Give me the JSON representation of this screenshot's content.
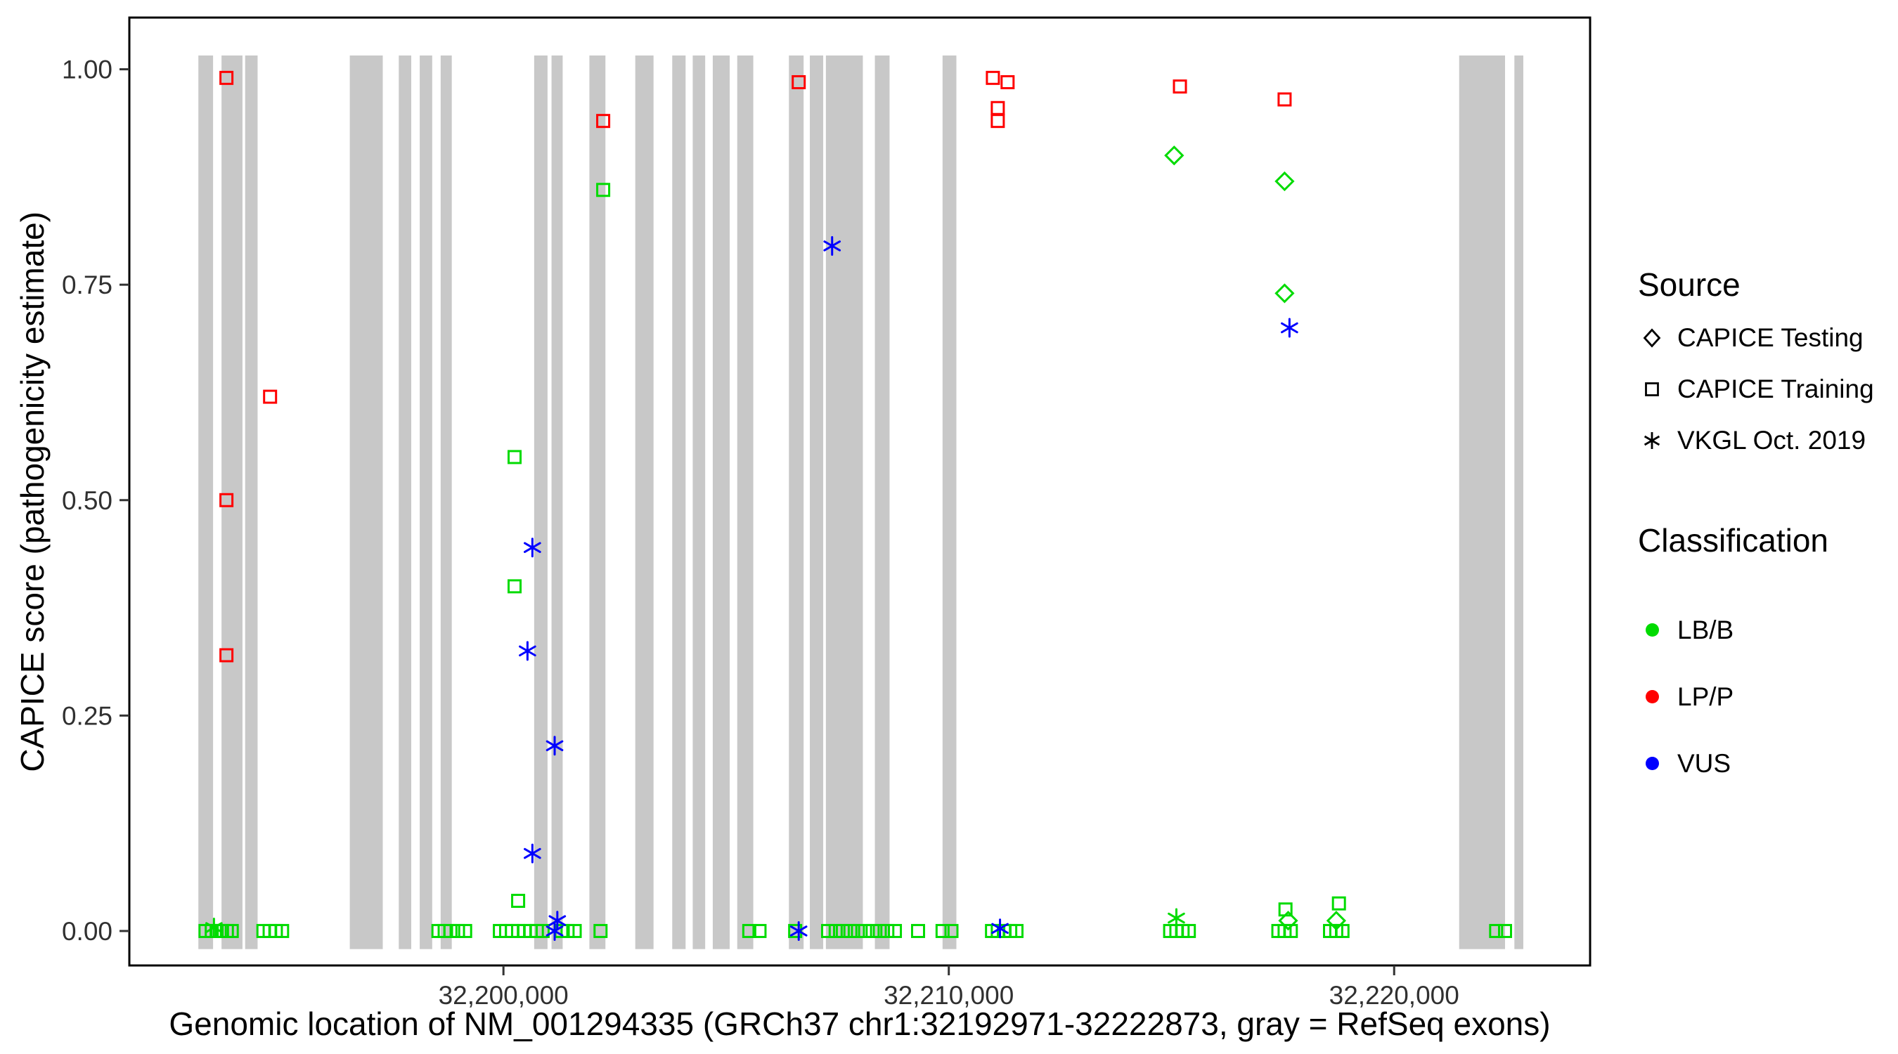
{
  "chart_data": {
    "type": "scatter",
    "title": "",
    "xlabel": "Genomic location of NM_001294335 (GRCh37 chr1:32192971-32222873, gray = RefSeq exons)",
    "ylabel": "CAPICE score (pathogenicity estimate)",
    "xlim": [
      32191600,
      32224400
    ],
    "ylim": [
      -0.04,
      1.06
    ],
    "grid": false,
    "x_ticks": [
      {
        "value": 32200000,
        "label": "32,200,000"
      },
      {
        "value": 32210000,
        "label": "32,210,000"
      },
      {
        "value": 32220000,
        "label": "32,220,000"
      }
    ],
    "y_ticks": [
      {
        "value": 0.0,
        "label": "0.00"
      },
      {
        "value": 0.25,
        "label": "0.25"
      },
      {
        "value": 0.5,
        "label": "0.50"
      },
      {
        "value": 0.75,
        "label": "0.75"
      },
      {
        "value": 1.0,
        "label": "1.00"
      }
    ],
    "exon_color": "#c8c8c8",
    "exon_y_range": [
      -0.021,
      1.016
    ],
    "exons": [
      [
        32193150,
        32193480
      ],
      [
        32193670,
        32194140
      ],
      [
        32194200,
        32194480
      ],
      [
        32196550,
        32197290
      ],
      [
        32197650,
        32197930
      ],
      [
        32198120,
        32198400
      ],
      [
        32198590,
        32198840
      ],
      [
        32200690,
        32200990
      ],
      [
        32201080,
        32201330
      ],
      [
        32201930,
        32202290
      ],
      [
        32202960,
        32203370
      ],
      [
        32203790,
        32204090
      ],
      [
        32204250,
        32204530
      ],
      [
        32204700,
        32205080
      ],
      [
        32205250,
        32205610
      ],
      [
        32206410,
        32206740
      ],
      [
        32206880,
        32207180
      ],
      [
        32207240,
        32208070
      ],
      [
        32208340,
        32208670
      ],
      [
        32209860,
        32210170
      ],
      [
        32221460,
        32222490
      ],
      [
        32222700,
        32222900
      ]
    ],
    "series": [
      {
        "name": "CAPICE Testing",
        "classification": "LB/B",
        "shape": "diamond",
        "color": "#00db00",
        "points": [
          [
            32215060,
            0.9
          ],
          [
            32217540,
            0.87
          ],
          [
            32217540,
            0.74
          ],
          [
            32217620,
            0.012
          ],
          [
            32218700,
            0.012
          ]
        ]
      },
      {
        "name": "CAPICE Training",
        "classification": "LB/B",
        "shape": "square",
        "color": "#00db00",
        "points": [
          [
            32202240,
            0.86
          ],
          [
            32200250,
            0.55
          ],
          [
            32200250,
            0.4
          ],
          [
            32200330,
            0.035
          ],
          [
            32218760,
            0.032
          ],
          [
            32217560,
            0.025
          ],
          [
            32193310,
            0.0
          ],
          [
            32193450,
            0.0
          ],
          [
            32193560,
            0.0
          ],
          [
            32193680,
            0.0
          ],
          [
            32193790,
            0.0
          ],
          [
            32193900,
            0.0
          ],
          [
            32194610,
            0.0
          ],
          [
            32194750,
            0.0
          ],
          [
            32194890,
            0.0
          ],
          [
            32195030,
            0.0
          ],
          [
            32198540,
            0.0
          ],
          [
            32198680,
            0.0
          ],
          [
            32198810,
            0.0
          ],
          [
            32198980,
            0.0
          ],
          [
            32199140,
            0.0
          ],
          [
            32199920,
            0.0
          ],
          [
            32200060,
            0.0
          ],
          [
            32200190,
            0.0
          ],
          [
            32200330,
            0.0
          ],
          [
            32200470,
            0.0
          ],
          [
            32200610,
            0.0
          ],
          [
            32200750,
            0.0
          ],
          [
            32200880,
            0.0
          ],
          [
            32201300,
            0.0
          ],
          [
            32201440,
            0.0
          ],
          [
            32201600,
            0.0
          ],
          [
            32202180,
            0.0
          ],
          [
            32205520,
            0.0
          ],
          [
            32205750,
            0.0
          ],
          [
            32206550,
            0.0
          ],
          [
            32207290,
            0.0
          ],
          [
            32207460,
            0.0
          ],
          [
            32207620,
            0.0
          ],
          [
            32207790,
            0.0
          ],
          [
            32207960,
            0.0
          ],
          [
            32208120,
            0.0
          ],
          [
            32208290,
            0.0
          ],
          [
            32208450,
            0.0
          ],
          [
            32208620,
            0.0
          ],
          [
            32208790,
            0.0
          ],
          [
            32209310,
            0.0
          ],
          [
            32209860,
            0.0
          ],
          [
            32210060,
            0.0
          ],
          [
            32210970,
            0.0
          ],
          [
            32211100,
            0.0
          ],
          [
            32211240,
            0.0
          ],
          [
            32211380,
            0.0
          ],
          [
            32211520,
            0.0
          ],
          [
            32214970,
            0.0
          ],
          [
            32215110,
            0.0
          ],
          [
            32215250,
            0.0
          ],
          [
            32215390,
            0.0
          ],
          [
            32217400,
            0.0
          ],
          [
            32217540,
            0.0
          ],
          [
            32217680,
            0.0
          ],
          [
            32218560,
            0.0
          ],
          [
            32218700,
            0.0
          ],
          [
            32218840,
            0.0
          ],
          [
            32222290,
            0.0
          ],
          [
            32222490,
            0.0
          ]
        ]
      },
      {
        "name": "CAPICE Training",
        "classification": "LP/P",
        "shape": "square",
        "color": "#ff0000",
        "points": [
          [
            32193780,
            0.99
          ],
          [
            32193780,
            0.5
          ],
          [
            32193780,
            0.32
          ],
          [
            32194760,
            0.62
          ],
          [
            32202240,
            0.94
          ],
          [
            32206630,
            0.985
          ],
          [
            32210990,
            0.99
          ],
          [
            32211320,
            0.985
          ],
          [
            32211100,
            0.955
          ],
          [
            32211100,
            0.94
          ],
          [
            32215190,
            0.98
          ],
          [
            32217540,
            0.965
          ]
        ]
      },
      {
        "name": "VKGL Oct. 2019",
        "classification": "VUS",
        "shape": "asterisk",
        "color": "#0000ff",
        "points": [
          [
            32207380,
            0.795
          ],
          [
            32217650,
            0.7
          ],
          [
            32200650,
            0.445
          ],
          [
            32200540,
            0.325
          ],
          [
            32201150,
            0.215
          ],
          [
            32200650,
            0.09
          ],
          [
            32201210,
            0.012
          ],
          [
            32201150,
            0.0
          ],
          [
            32206630,
            0.0
          ],
          [
            32211150,
            0.003
          ]
        ]
      },
      {
        "name": "VKGL Oct. 2019",
        "classification": "LB/B",
        "shape": "asterisk",
        "color": "#00db00",
        "points": [
          [
            32193500,
            0.004
          ],
          [
            32215110,
            0.015
          ]
        ]
      }
    ],
    "legend": {
      "source": {
        "title": "Source",
        "items": [
          {
            "label": "CAPICE Testing",
            "shape": "diamond"
          },
          {
            "label": "CAPICE Training",
            "shape": "square"
          },
          {
            "label": "VKGL Oct. 2019",
            "shape": "asterisk"
          }
        ]
      },
      "classification": {
        "title": "Classification",
        "items": [
          {
            "label": "LB/B",
            "color": "#00db00"
          },
          {
            "label": "LP/P",
            "color": "#ff0000"
          },
          {
            "label": "VUS",
            "color": "#0000ff"
          }
        ]
      }
    }
  }
}
